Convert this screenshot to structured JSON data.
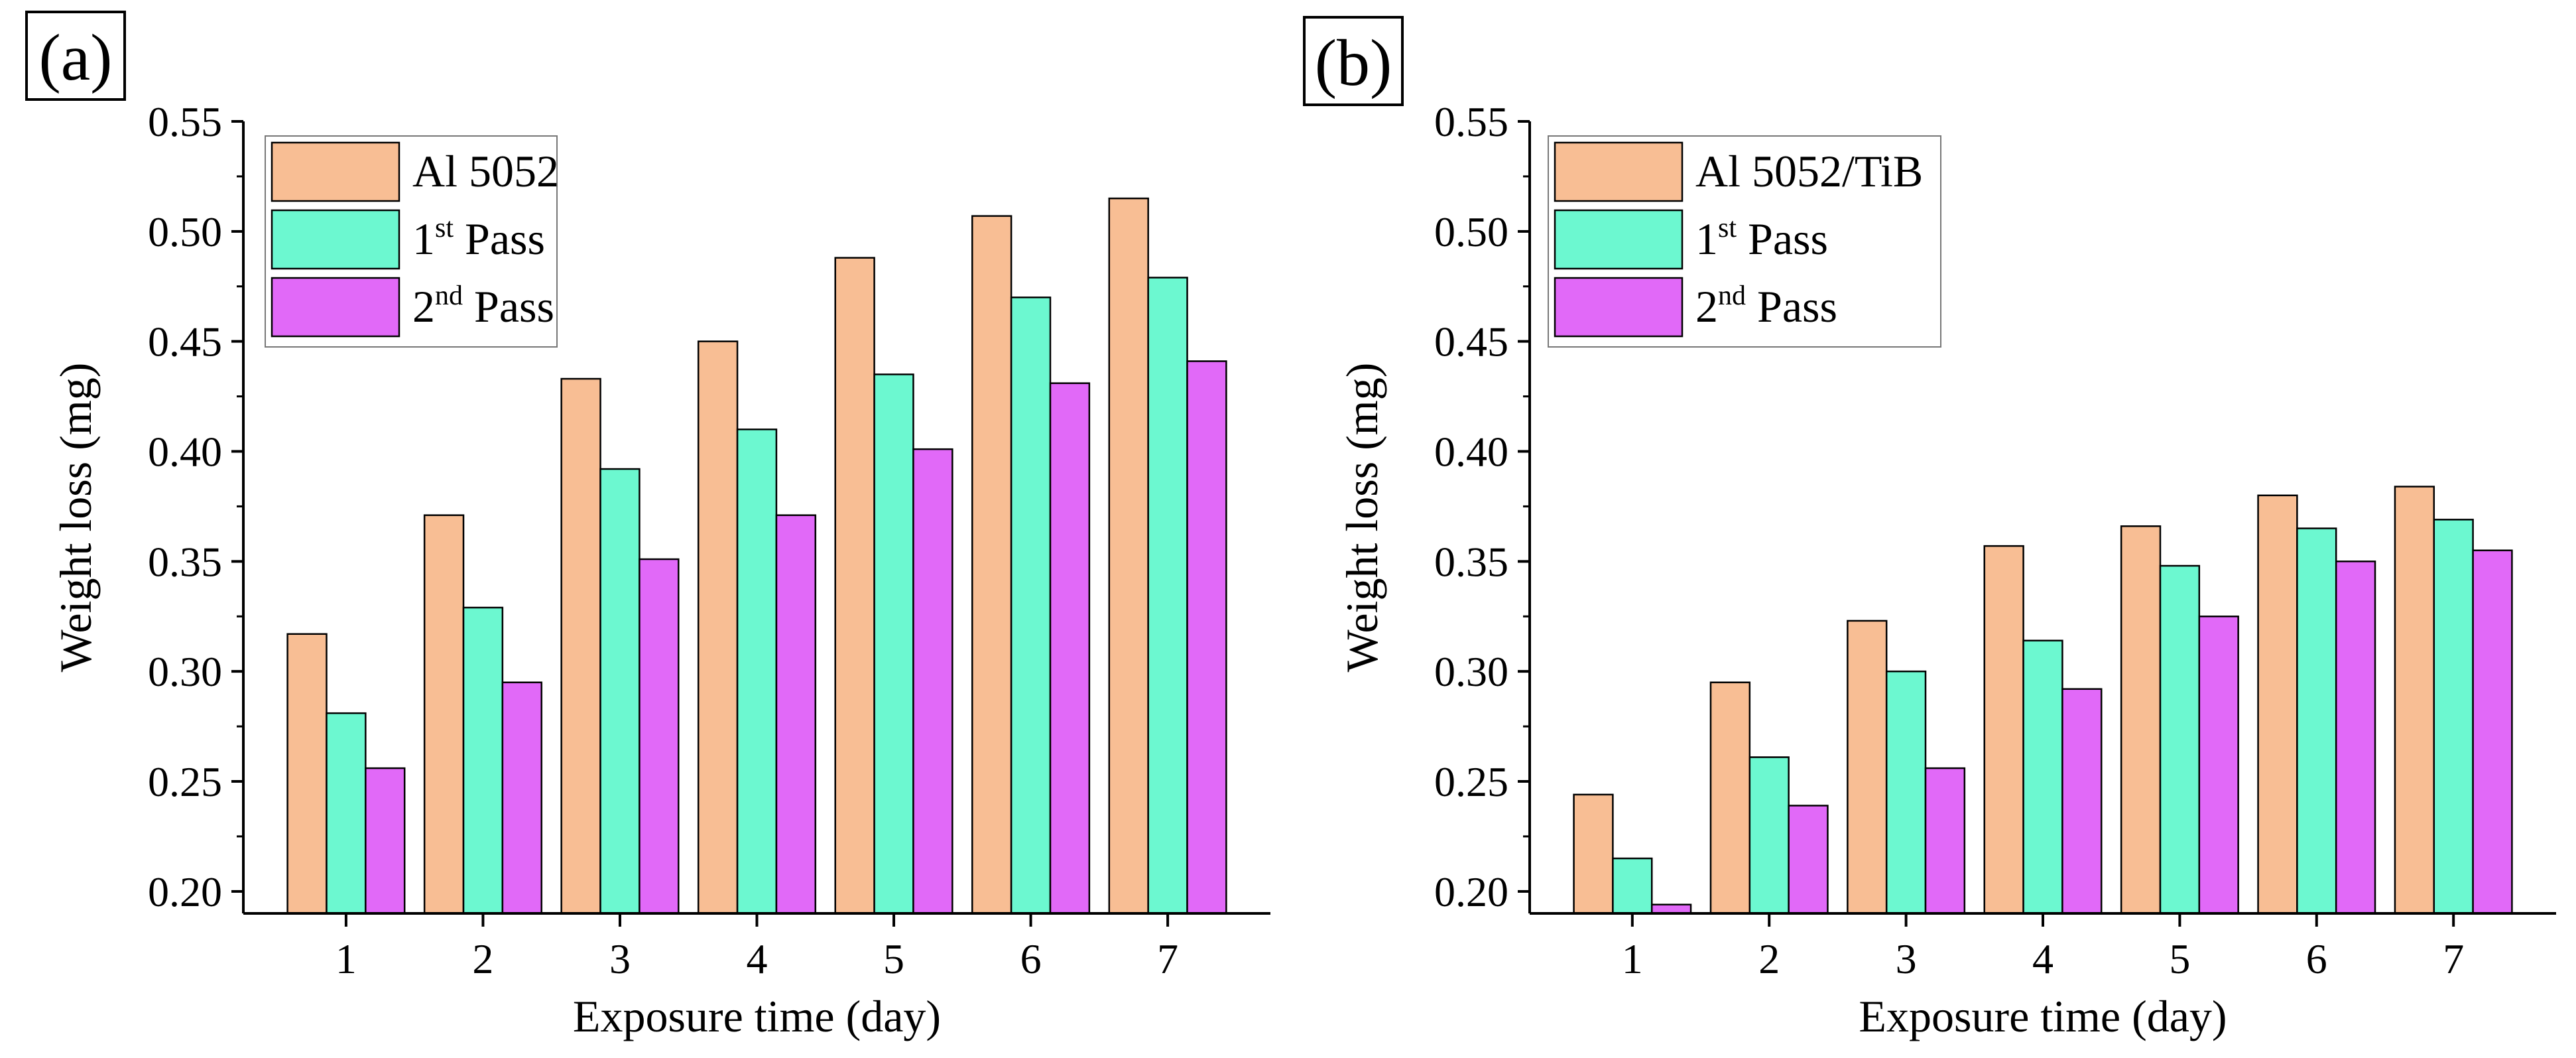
{
  "colors": {
    "series_1": "#F8BE94",
    "series_2": "#6CF8D0",
    "series_3": "#E169F8",
    "axis": "#000000"
  },
  "chart_data": [
    {
      "type": "bar",
      "panel_label": "(a)",
      "categories": [
        "1",
        "2",
        "3",
        "4",
        "5",
        "6",
        "7"
      ],
      "xlabel": "Exposure time (day)",
      "ylabel": "Weight loss (mg)",
      "ylim": [
        0.19,
        0.55
      ],
      "yticks": [
        "0.20",
        "0.25",
        "0.30",
        "0.35",
        "0.40",
        "0.45",
        "0.50",
        "0.55"
      ],
      "legend_position": "top-left",
      "series": [
        {
          "name": "Al 5052",
          "name_sup": "",
          "name_rest": "",
          "values": [
            0.317,
            0.371,
            0.433,
            0.45,
            0.488,
            0.507,
            0.515
          ]
        },
        {
          "name": "1",
          "name_sup": "st",
          "name_rest": " Pass",
          "values": [
            0.281,
            0.329,
            0.392,
            0.41,
            0.435,
            0.47,
            0.479
          ]
        },
        {
          "name": "2",
          "name_sup": "nd",
          "name_rest": " Pass",
          "values": [
            0.256,
            0.295,
            0.351,
            0.371,
            0.401,
            0.431,
            0.441
          ]
        }
      ]
    },
    {
      "type": "bar",
      "panel_label": "(b)",
      "categories": [
        "1",
        "2",
        "3",
        "4",
        "5",
        "6",
        "7"
      ],
      "xlabel": "Exposure time (day)",
      "ylabel": "Weight loss (mg)",
      "ylim": [
        0.19,
        0.55
      ],
      "yticks": [
        "0.20",
        "0.25",
        "0.30",
        "0.35",
        "0.40",
        "0.45",
        "0.50",
        "0.55"
      ],
      "legend_position": "top-left",
      "series": [
        {
          "name": "Al 5052/TiB",
          "name_sup": "",
          "name_rest": "",
          "values": [
            0.244,
            0.295,
            0.323,
            0.357,
            0.366,
            0.38,
            0.384
          ]
        },
        {
          "name": "1",
          "name_sup": "st",
          "name_rest": " Pass",
          "values": [
            0.215,
            0.261,
            0.3,
            0.314,
            0.348,
            0.365,
            0.369
          ]
        },
        {
          "name": "2",
          "name_sup": "nd",
          "name_rest": " Pass",
          "values": [
            0.194,
            0.239,
            0.256,
            0.292,
            0.325,
            0.35,
            0.355
          ]
        }
      ]
    }
  ]
}
